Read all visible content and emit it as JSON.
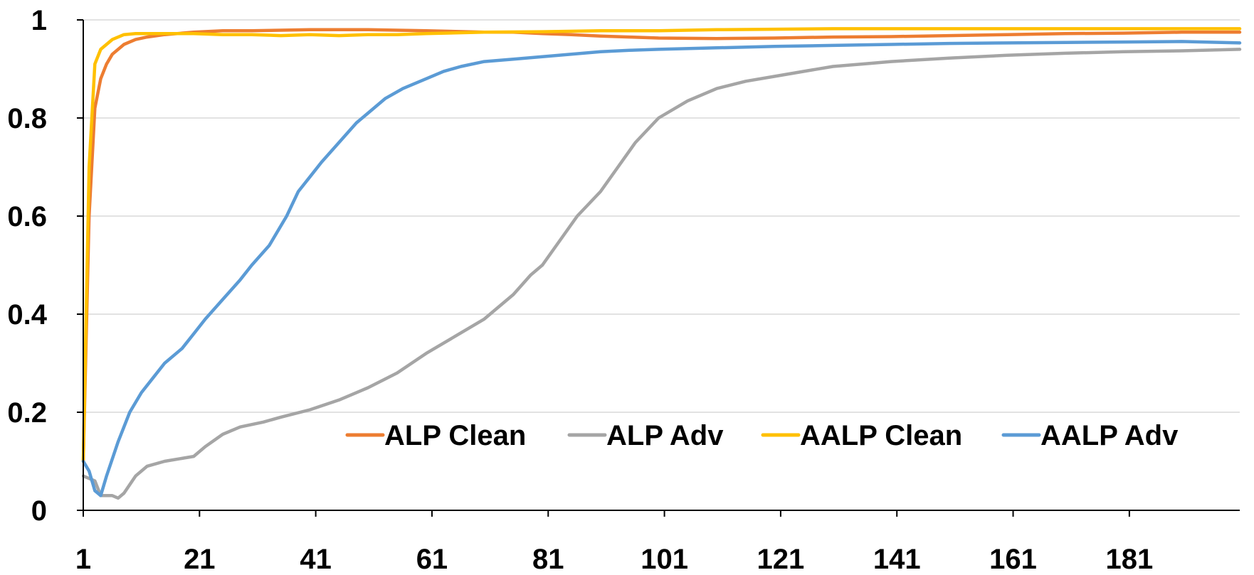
{
  "chart_data": {
    "type": "line",
    "title": "",
    "xlabel": "",
    "ylabel": "",
    "xlim": [
      1,
      200
    ],
    "ylim": [
      0,
      1
    ],
    "x_ticks": [
      1,
      21,
      41,
      61,
      81,
      101,
      121,
      141,
      161,
      181
    ],
    "x_tick_labels": [
      "1",
      "21",
      "41",
      "61",
      "81",
      "101",
      "121",
      "141",
      "161",
      "181"
    ],
    "y_ticks": [
      0,
      0.2,
      0.4,
      0.6,
      0.8,
      1
    ],
    "y_tick_labels": [
      "0",
      "0.2",
      "0.4",
      "0.6",
      "0.8",
      "1"
    ],
    "grid": true,
    "legend_position": "bottom-right inside plot",
    "series": [
      {
        "name": "ALP Clean",
        "color": "#ED7D31",
        "points": [
          [
            1,
            0.1
          ],
          [
            2,
            0.6
          ],
          [
            3,
            0.82
          ],
          [
            4,
            0.88
          ],
          [
            5,
            0.91
          ],
          [
            6,
            0.93
          ],
          [
            8,
            0.95
          ],
          [
            10,
            0.96
          ],
          [
            12,
            0.965
          ],
          [
            15,
            0.97
          ],
          [
            20,
            0.975
          ],
          [
            25,
            0.978
          ],
          [
            30,
            0.978
          ],
          [
            40,
            0.98
          ],
          [
            50,
            0.98
          ],
          [
            60,
            0.978
          ],
          [
            70,
            0.975
          ],
          [
            75,
            0.975
          ],
          [
            80,
            0.972
          ],
          [
            85,
            0.97
          ],
          [
            90,
            0.967
          ],
          [
            95,
            0.965
          ],
          [
            100,
            0.963
          ],
          [
            110,
            0.962
          ],
          [
            120,
            0.963
          ],
          [
            130,
            0.965
          ],
          [
            140,
            0.966
          ],
          [
            150,
            0.968
          ],
          [
            160,
            0.97
          ],
          [
            170,
            0.972
          ],
          [
            180,
            0.973
          ],
          [
            190,
            0.975
          ],
          [
            200,
            0.975
          ]
        ]
      },
      {
        "name": "ALP Adv",
        "color": "#A5A5A5",
        "points": [
          [
            1,
            0.07
          ],
          [
            3,
            0.06
          ],
          [
            4,
            0.03
          ],
          [
            6,
            0.03
          ],
          [
            7,
            0.025
          ],
          [
            8,
            0.035
          ],
          [
            10,
            0.07
          ],
          [
            12,
            0.09
          ],
          [
            15,
            0.1
          ],
          [
            20,
            0.11
          ],
          [
            22,
            0.13
          ],
          [
            25,
            0.155
          ],
          [
            28,
            0.17
          ],
          [
            32,
            0.18
          ],
          [
            35,
            0.19
          ],
          [
            40,
            0.205
          ],
          [
            45,
            0.225
          ],
          [
            50,
            0.25
          ],
          [
            55,
            0.28
          ],
          [
            60,
            0.32
          ],
          [
            65,
            0.355
          ],
          [
            70,
            0.39
          ],
          [
            75,
            0.44
          ],
          [
            78,
            0.48
          ],
          [
            80,
            0.5
          ],
          [
            83,
            0.55
          ],
          [
            86,
            0.6
          ],
          [
            90,
            0.65
          ],
          [
            93,
            0.7
          ],
          [
            96,
            0.75
          ],
          [
            100,
            0.8
          ],
          [
            105,
            0.835
          ],
          [
            110,
            0.86
          ],
          [
            115,
            0.875
          ],
          [
            120,
            0.885
          ],
          [
            125,
            0.895
          ],
          [
            130,
            0.905
          ],
          [
            135,
            0.91
          ],
          [
            140,
            0.915
          ],
          [
            150,
            0.922
          ],
          [
            160,
            0.928
          ],
          [
            170,
            0.932
          ],
          [
            180,
            0.935
          ],
          [
            190,
            0.937
          ],
          [
            200,
            0.94
          ]
        ]
      },
      {
        "name": "AALP Clean",
        "color": "#FFC000",
        "points": [
          [
            1,
            0.1
          ],
          [
            2,
            0.7
          ],
          [
            3,
            0.91
          ],
          [
            4,
            0.94
          ],
          [
            6,
            0.96
          ],
          [
            8,
            0.97
          ],
          [
            10,
            0.972
          ],
          [
            15,
            0.972
          ],
          [
            20,
            0.972
          ],
          [
            25,
            0.97
          ],
          [
            30,
            0.97
          ],
          [
            35,
            0.968
          ],
          [
            40,
            0.97
          ],
          [
            45,
            0.968
          ],
          [
            50,
            0.97
          ],
          [
            55,
            0.97
          ],
          [
            60,
            0.972
          ],
          [
            70,
            0.975
          ],
          [
            80,
            0.976
          ],
          [
            90,
            0.978
          ],
          [
            100,
            0.978
          ],
          [
            110,
            0.98
          ],
          [
            120,
            0.981
          ],
          [
            130,
            0.982
          ],
          [
            140,
            0.982
          ],
          [
            150,
            0.982
          ],
          [
            160,
            0.982
          ],
          [
            170,
            0.982
          ],
          [
            180,
            0.982
          ],
          [
            190,
            0.982
          ],
          [
            200,
            0.982
          ]
        ]
      },
      {
        "name": "AALP Adv",
        "color": "#5B9BD5",
        "points": [
          [
            1,
            0.1
          ],
          [
            2,
            0.08
          ],
          [
            3,
            0.04
          ],
          [
            4,
            0.03
          ],
          [
            5,
            0.07
          ],
          [
            7,
            0.14
          ],
          [
            9,
            0.2
          ],
          [
            11,
            0.24
          ],
          [
            13,
            0.27
          ],
          [
            15,
            0.3
          ],
          [
            18,
            0.33
          ],
          [
            20,
            0.36
          ],
          [
            22,
            0.39
          ],
          [
            25,
            0.43
          ],
          [
            28,
            0.47
          ],
          [
            30,
            0.5
          ],
          [
            33,
            0.54
          ],
          [
            36,
            0.6
          ],
          [
            38,
            0.65
          ],
          [
            40,
            0.68
          ],
          [
            42,
            0.71
          ],
          [
            45,
            0.75
          ],
          [
            48,
            0.79
          ],
          [
            50,
            0.81
          ],
          [
            53,
            0.84
          ],
          [
            56,
            0.86
          ],
          [
            60,
            0.88
          ],
          [
            63,
            0.895
          ],
          [
            66,
            0.905
          ],
          [
            70,
            0.915
          ],
          [
            75,
            0.92
          ],
          [
            80,
            0.925
          ],
          [
            85,
            0.93
          ],
          [
            90,
            0.935
          ],
          [
            95,
            0.938
          ],
          [
            100,
            0.94
          ],
          [
            110,
            0.943
          ],
          [
            120,
            0.946
          ],
          [
            130,
            0.948
          ],
          [
            140,
            0.95
          ],
          [
            150,
            0.952
          ],
          [
            160,
            0.953
          ],
          [
            170,
            0.954
          ],
          [
            180,
            0.955
          ],
          [
            190,
            0.956
          ],
          [
            200,
            0.953
          ]
        ]
      }
    ]
  }
}
